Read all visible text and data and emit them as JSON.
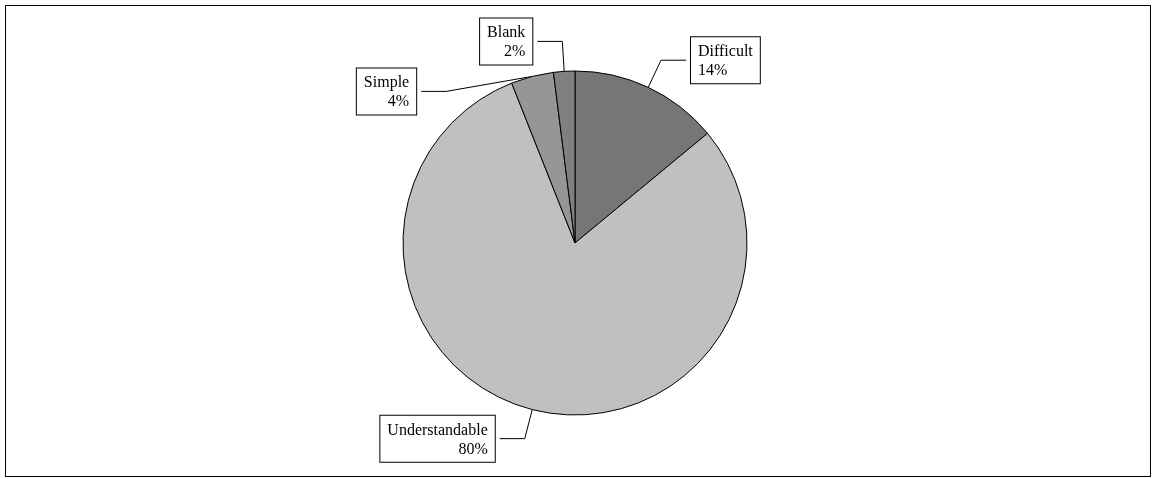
{
  "chart_data": {
    "type": "pie",
    "categories": [
      "Difficult",
      "Understandable",
      "Simple",
      "Blank"
    ],
    "values": [
      14,
      80,
      4,
      2
    ],
    "value_labels": [
      "14%",
      "80%",
      "4%",
      "2%"
    ],
    "colors": [
      "#767676",
      "#c0c0c0",
      "#969696",
      "#808080"
    ],
    "legend": false
  }
}
